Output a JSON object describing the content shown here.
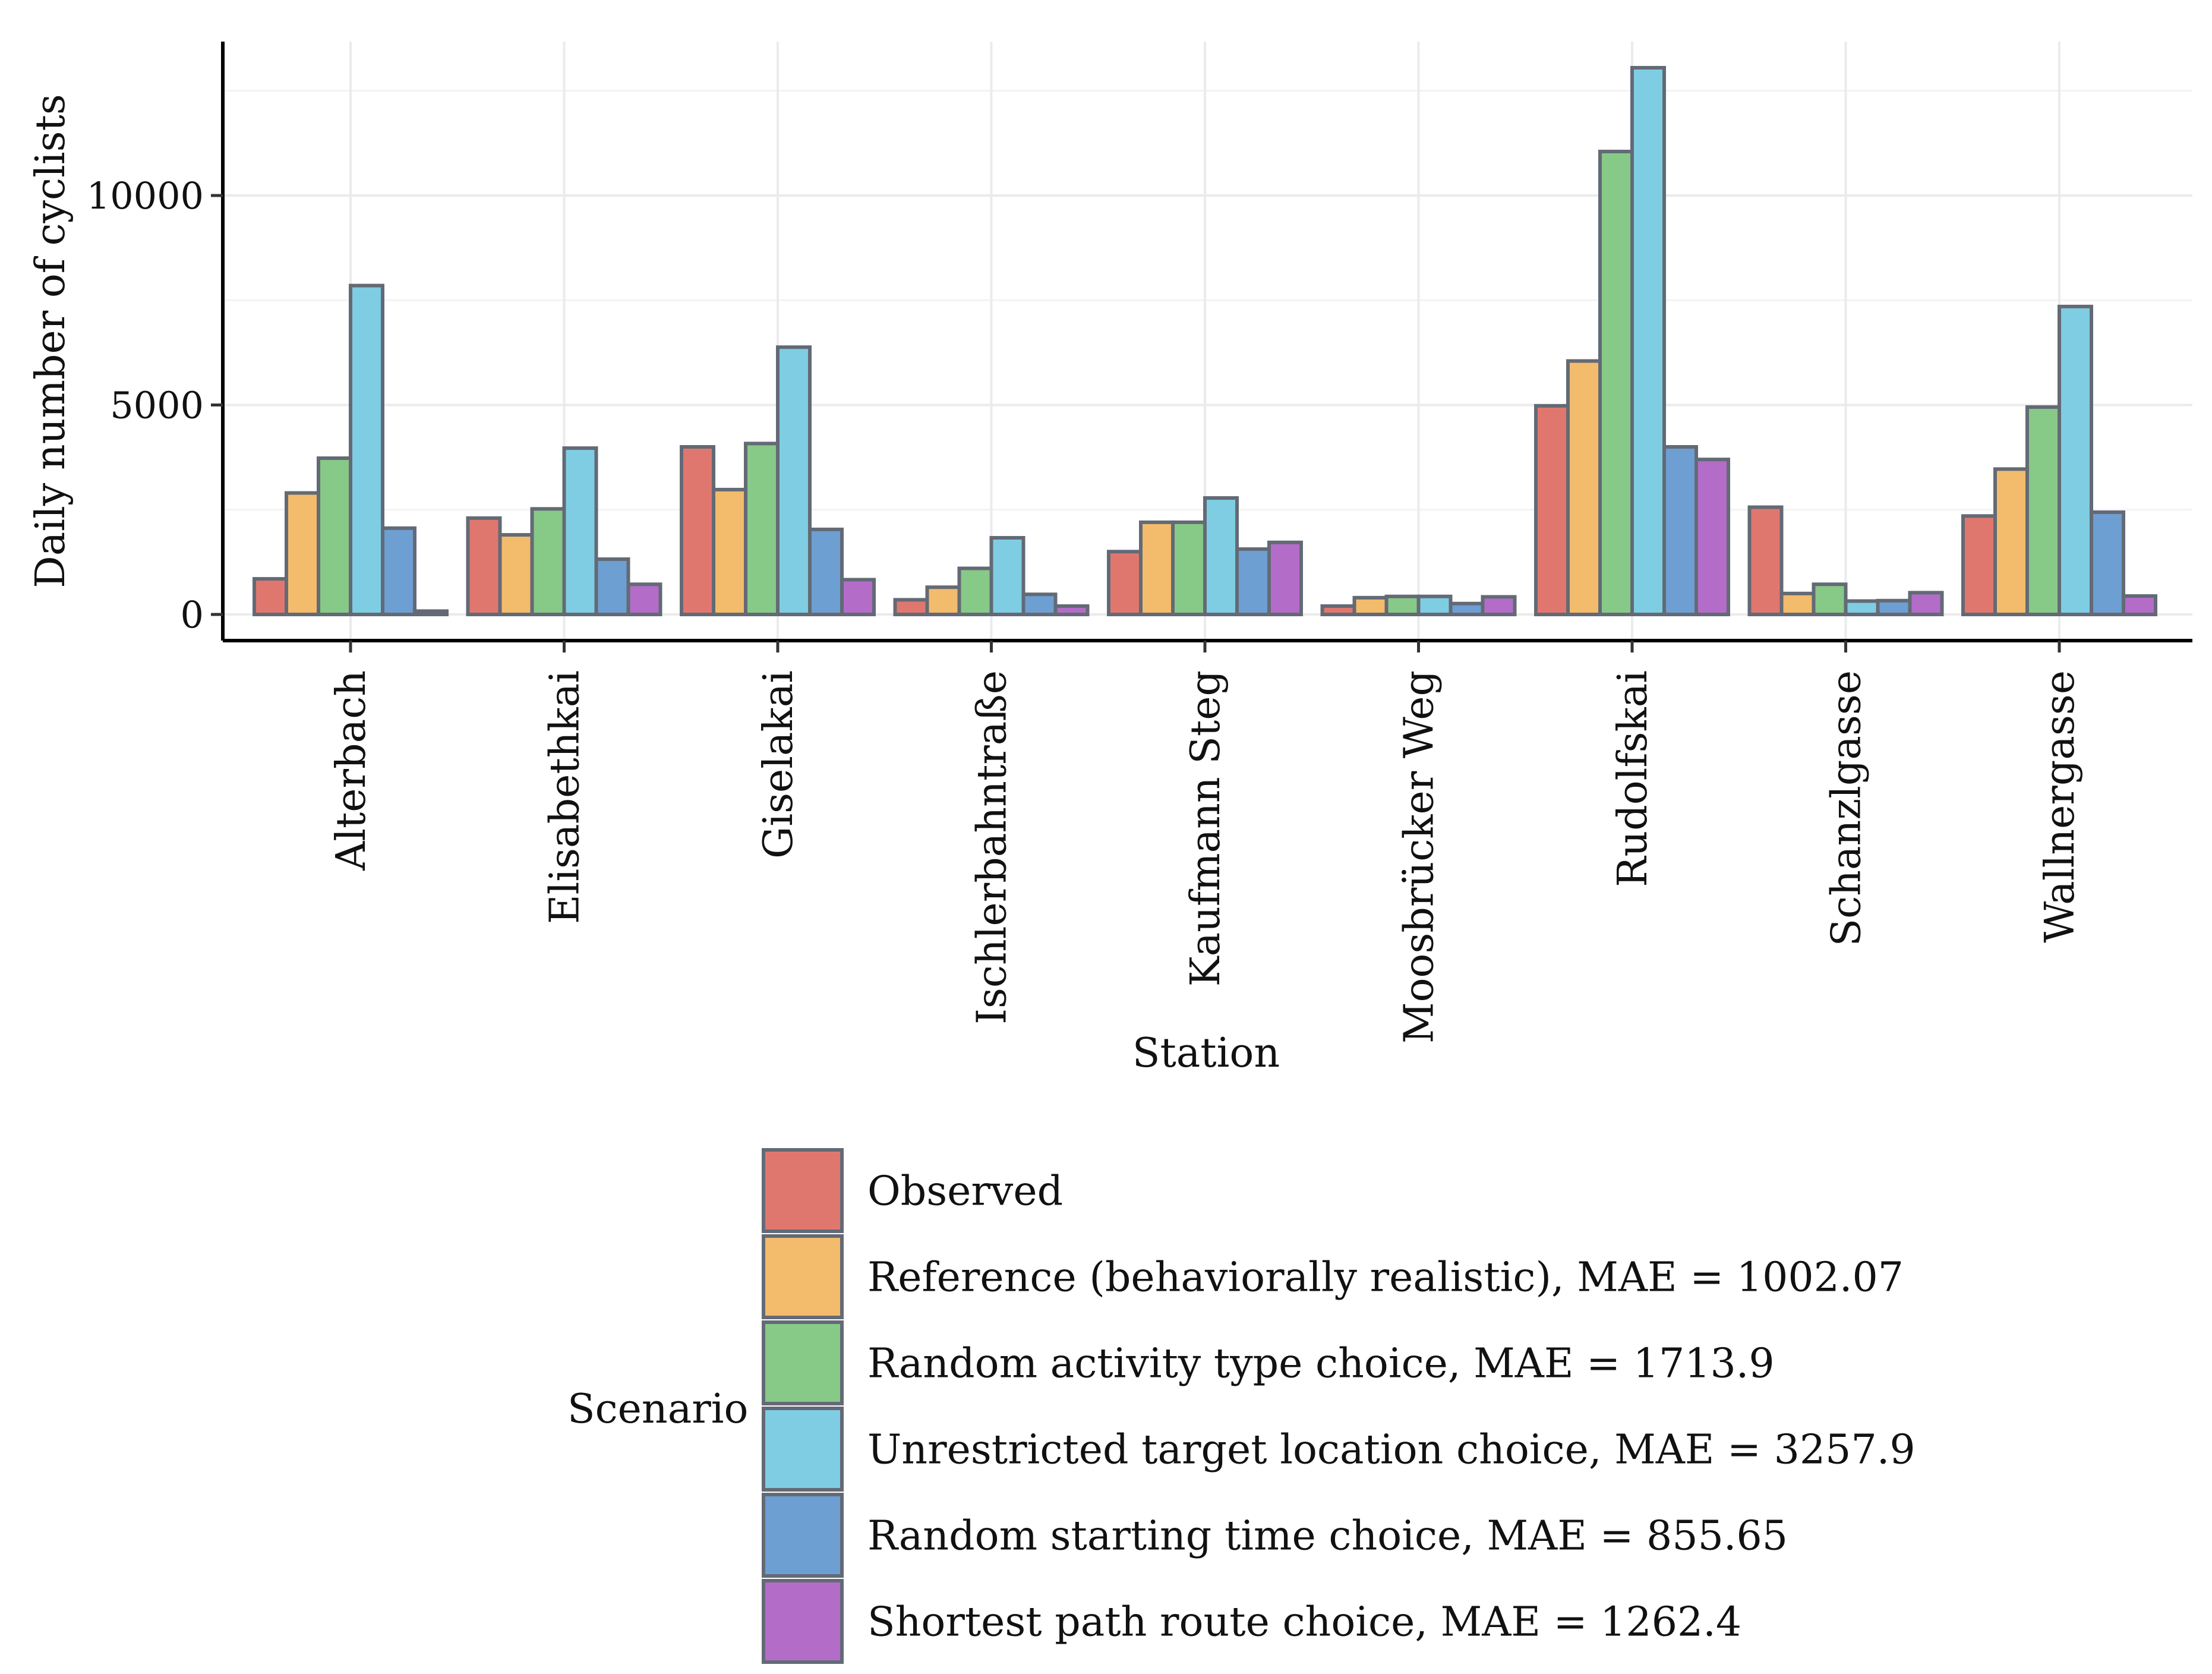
{
  "chart_data": {
    "type": "bar",
    "xlabel": "Station",
    "ylabel": "Daily number of cyclists",
    "ylim": [
      -600,
      13700
    ],
    "yticks": [
      0,
      5000,
      10000
    ],
    "ytick_labels": [
      "0",
      "5000",
      "10000"
    ],
    "grid": true,
    "legend_placement": "bottom",
    "legend_title": "Scenario",
    "categories": [
      "Alterbach",
      "Elisabethkai",
      "Giselakai",
      "Ischlerbahntraße",
      "Kaufmann Steg",
      "Moosbrücker Weg",
      "Rudolfskai",
      "Schanzlgasse",
      "Wallnergasse"
    ],
    "series": [
      {
        "name": "Observed",
        "color": "#E0776F",
        "values": [
          850,
          2300,
          4000,
          350,
          1500,
          200,
          4980,
          2560,
          2350
        ]
      },
      {
        "name": "Reference (behaviorally realistic), MAE = 1002.07",
        "color": "#F3BB6C",
        "values": [
          2900,
          1900,
          2980,
          650,
          2200,
          400,
          6050,
          500,
          3470
        ]
      },
      {
        "name": "Random activity type choice, MAE = 1713.9",
        "color": "#87C987",
        "values": [
          3730,
          2520,
          4080,
          1100,
          2200,
          430,
          11050,
          720,
          4950
        ]
      },
      {
        "name": "Unrestricted target location choice, MAE = 3257.9",
        "color": "#7FCDE2",
        "values": [
          7850,
          3970,
          6380,
          1830,
          2780,
          430,
          13050,
          320,
          7350
        ]
      },
      {
        "name": "Random starting time choice, MAE = 855.65",
        "color": "#6D9FD2",
        "values": [
          2060,
          1320,
          2030,
          480,
          1560,
          260,
          4000,
          330,
          2440
        ]
      },
      {
        "name": "Shortest path route choice, MAE = 1262.4",
        "color": "#B46CC9",
        "values": [
          80,
          720,
          830,
          200,
          1720,
          420,
          3700,
          520,
          440
        ]
      }
    ]
  }
}
